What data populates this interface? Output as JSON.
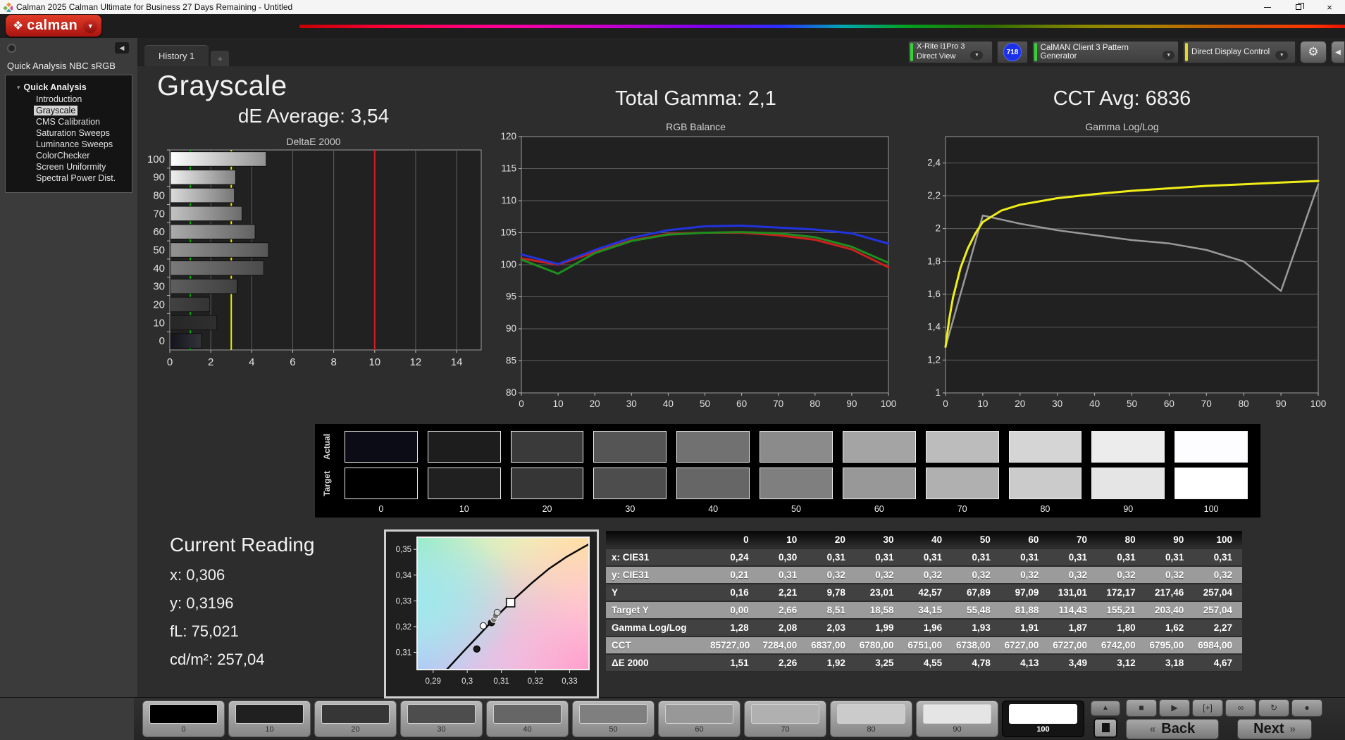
{
  "window": {
    "title": "Calman 2025 Calman Ultimate for Business 27 Days Remaining  - Untitled",
    "minimize_icon": "minimize",
    "restore_icon": "restore",
    "close_icon": "×"
  },
  "header": {
    "logo_text": "calman",
    "logo_diamond": "❖",
    "logo_dropdown_arrow": "▼"
  },
  "toolbar": {
    "tab_label": "History 1",
    "tab_add_label": "+",
    "meter": {
      "line1": "X-Rite i1Pro 3",
      "line2": "Direct View",
      "accent": "#35d435",
      "chevron": "▼"
    },
    "meter_badge": "718",
    "pattern_generator": {
      "label": "CalMAN Client 3 Pattern Generator",
      "accent": "#35d435",
      "chevron": "▼"
    },
    "display_control": {
      "label": "Direct Display Control",
      "accent": "#e6d81f",
      "chevron": "▼"
    },
    "gear_glyph": "⚙",
    "edge_collapse_glyph": "◀"
  },
  "sidebar": {
    "collapse_glyph": "◀",
    "workflow_title": "Quick Analysis NBC sRGB",
    "tree_root": "Quick Analysis",
    "tree_expander": "▾",
    "items": [
      {
        "label": "Introduction",
        "selected": false
      },
      {
        "label": "Grayscale",
        "selected": true
      },
      {
        "label": "CMS Calibration",
        "selected": false
      },
      {
        "label": "Saturation Sweeps",
        "selected": false
      },
      {
        "label": "Luminance Sweeps",
        "selected": false
      },
      {
        "label": "ColorChecker",
        "selected": false
      },
      {
        "label": "Screen Uniformity",
        "selected": false
      },
      {
        "label": "Spectral Power Dist.",
        "selected": false
      }
    ]
  },
  "grayscale_section": {
    "title": "Grayscale",
    "subtitle": "dE Average: 3,54"
  },
  "gamma_section": {
    "title": "Total Gamma: 2,1"
  },
  "cct_section": {
    "title": "CCT Avg: 6836"
  },
  "current_reading": {
    "title": "Current Reading",
    "x": "x: 0,306",
    "y": "y: 0,3196",
    "fl": "fL: 75,021",
    "cdm2": "cd/m²: 257,04"
  },
  "chart_data": [
    {
      "id": "deltae",
      "type": "bar",
      "orientation": "horizontal",
      "title": "DeltaE 2000",
      "categories": [
        0,
        10,
        20,
        30,
        40,
        50,
        60,
        70,
        80,
        90,
        100
      ],
      "values": [
        1.51,
        2.26,
        1.92,
        3.25,
        4.55,
        4.78,
        4.13,
        3.49,
        3.12,
        3.18,
        4.67
      ],
      "xlim": [
        0,
        15.2
      ],
      "xticks": [
        0,
        2,
        4,
        6,
        8,
        10,
        12,
        14
      ],
      "xtick_labels": [
        "0",
        "2",
        "4",
        "6",
        "8",
        "10",
        "12",
        "14"
      ],
      "reference_lines": [
        {
          "value": 1,
          "color": "#00b400",
          "name": "good-target"
        },
        {
          "value": 3,
          "color": "#e8e800",
          "name": "warning-target"
        },
        {
          "value": 10,
          "color": "#d62020",
          "name": "fail-target"
        }
      ],
      "bar_gradients": [
        [
          "#14141c",
          "#33333a"
        ],
        [
          "#272727",
          "#2f2f2f"
        ],
        [
          "#424242",
          "#343434"
        ],
        [
          "#5e5e5e",
          "#404040"
        ],
        [
          "#7a7a7a",
          "#4b4b4b"
        ],
        [
          "#939393",
          "#565656"
        ],
        [
          "#ababab",
          "#616161"
        ],
        [
          "#c3c3c3",
          "#6b6b6b"
        ],
        [
          "#dbdbdb",
          "#767676"
        ],
        [
          "#f0f0f0",
          "#818181"
        ],
        [
          "#ffffff",
          "#929292"
        ]
      ]
    },
    {
      "id": "rgb_balance",
      "type": "line",
      "title": "RGB Balance",
      "x": [
        0,
        10,
        20,
        30,
        40,
        50,
        60,
        70,
        80,
        90,
        100
      ],
      "xticks": [
        0,
        10,
        20,
        30,
        40,
        50,
        60,
        70,
        80,
        90,
        100
      ],
      "xtick_labels": [
        "0",
        "10",
        "20",
        "30",
        "40",
        "50",
        "60",
        "70",
        "80",
        "90",
        "100"
      ],
      "ylim": [
        80,
        120
      ],
      "ytick_values": [
        80,
        85,
        90,
        95,
        100,
        105,
        110,
        115,
        120
      ],
      "ytick_labels": [
        "80",
        "85",
        "90",
        "95",
        "100",
        "105",
        "110",
        "115",
        "120"
      ],
      "series": [
        {
          "name": "Red",
          "color": "#cc1f1f",
          "width": 3,
          "values": [
            101.0,
            100.0,
            102.0,
            103.8,
            104.8,
            105.0,
            105.0,
            104.6,
            103.9,
            102.4,
            99.6
          ]
        },
        {
          "name": "Green",
          "color": "#1e8e1e",
          "width": 3,
          "values": [
            100.8,
            98.6,
            101.8,
            103.7,
            104.7,
            105.0,
            105.1,
            104.9,
            104.3,
            102.8,
            100.3
          ]
        },
        {
          "name": "Blue",
          "color": "#2233dd",
          "width": 3,
          "values": [
            101.6,
            100.1,
            102.3,
            104.2,
            105.4,
            106.0,
            106.1,
            105.8,
            105.5,
            104.9,
            103.3
          ]
        }
      ]
    },
    {
      "id": "gamma_loglog",
      "type": "line",
      "title": "Gamma Log/Log",
      "x": [
        0,
        10,
        20,
        30,
        40,
        50,
        60,
        70,
        80,
        90,
        100
      ],
      "xticks": [
        0,
        10,
        20,
        30,
        40,
        50,
        60,
        70,
        80,
        90,
        100
      ],
      "xtick_labels": [
        "0",
        "10",
        "20",
        "30",
        "40",
        "50",
        "60",
        "70",
        "80",
        "90",
        "100"
      ],
      "ylim": [
        1,
        2.56
      ],
      "ytick_values": [
        1,
        1.2,
        1.4,
        1.6,
        1.8,
        2,
        2.2,
        2.4
      ],
      "ytick_labels": [
        "1",
        "1,2",
        "1,4",
        "1,6",
        "1,8",
        "2",
        "2,2",
        "2,4"
      ],
      "series": [
        {
          "name": "Measured",
          "color": "#9a9a9a",
          "width": 2.5,
          "values": [
            1.28,
            2.08,
            2.03,
            1.99,
            1.96,
            1.93,
            1.91,
            1.87,
            1.8,
            1.62,
            2.27
          ]
        },
        {
          "name": "Target",
          "color": "#f0ee18",
          "width": 3,
          "x": [
            0,
            1,
            2,
            4,
            6,
            8,
            10,
            15,
            20,
            30,
            40,
            50,
            60,
            70,
            80,
            90,
            100
          ],
          "values": [
            1.28,
            1.45,
            1.58,
            1.76,
            1.88,
            1.97,
            2.04,
            2.11,
            2.145,
            2.185,
            2.21,
            2.23,
            2.245,
            2.26,
            2.27,
            2.28,
            2.29
          ]
        }
      ]
    },
    {
      "id": "cie_scatter",
      "type": "scatter",
      "xlim": [
        0.2853,
        0.3357
      ],
      "ylim": [
        0.3033,
        0.3547
      ],
      "xticks": [
        0.29,
        0.3,
        0.31,
        0.32,
        0.33
      ],
      "xtick_labels": [
        "0,29",
        "0,3",
        "0,31",
        "0,32",
        "0,33"
      ],
      "yticks": [
        0.31,
        0.32,
        0.33,
        0.34,
        0.35
      ],
      "ytick_labels": [
        "0,31",
        "0,32",
        "0,33",
        "0,34",
        "0,35"
      ],
      "locus": [
        [
          0.294,
          0.3033
        ],
        [
          0.299,
          0.3105
        ],
        [
          0.304,
          0.3175
        ],
        [
          0.309,
          0.3245
        ],
        [
          0.314,
          0.331
        ],
        [
          0.319,
          0.337
        ],
        [
          0.324,
          0.3425
        ],
        [
          0.329,
          0.347
        ],
        [
          0.334,
          0.3508
        ],
        [
          0.3357,
          0.352
        ]
      ],
      "points": [
        {
          "x": 0.3028,
          "y": 0.3113,
          "style": "dot-dark"
        },
        {
          "x": 0.3047,
          "y": 0.3203,
          "style": "dot-open"
        },
        {
          "x": 0.3071,
          "y": 0.3215,
          "style": "dot-dark"
        },
        {
          "x": 0.3078,
          "y": 0.3228,
          "style": "dot-mid"
        },
        {
          "x": 0.3083,
          "y": 0.3242,
          "style": "dot-mid"
        },
        {
          "x": 0.3088,
          "y": 0.3255,
          "style": "dot-light"
        },
        {
          "x": 0.3127,
          "y": 0.3293,
          "style": "square-target"
        }
      ],
      "corner_colors": {
        "top_left": "#8ef0c0",
        "top_right": "#ffe2a0",
        "bottom_left": "#aac8f8",
        "bottom_right": "#ff9ecb",
        "mid_left": "#9fe8ea"
      }
    }
  ],
  "levels_strip": {
    "row_labels": [
      "Actual",
      "Target"
    ],
    "levels": [
      "0",
      "10",
      "20",
      "30",
      "40",
      "50",
      "60",
      "70",
      "80",
      "90",
      "100"
    ],
    "actual_colors": [
      "#0c0c16",
      "#1d1d1d",
      "#3a3a3a",
      "#555555",
      "#717171",
      "#8b8b8b",
      "#a4a4a4",
      "#bcbcbc",
      "#d5d5d5",
      "#ececec",
      "#fdfdff"
    ],
    "target_colors": [
      "#000000",
      "#202020",
      "#363636",
      "#4d4d4d",
      "#666666",
      "#7f7f7f",
      "#989898",
      "#b0b0b0",
      "#cbcbcb",
      "#e5e5e5",
      "#ffffff"
    ]
  },
  "table": {
    "columns": [
      "",
      "0",
      "10",
      "20",
      "30",
      "40",
      "50",
      "60",
      "70",
      "80",
      "90",
      "100"
    ],
    "rows": [
      {
        "label": "x: CIE31",
        "tone": "dark",
        "values": [
          "0,24",
          "0,30",
          "0,31",
          "0,31",
          "0,31",
          "0,31",
          "0,31",
          "0,31",
          "0,31",
          "0,31",
          "0,31"
        ]
      },
      {
        "label": "y: CIE31",
        "tone": "light",
        "values": [
          "0,21",
          "0,31",
          "0,32",
          "0,32",
          "0,32",
          "0,32",
          "0,32",
          "0,32",
          "0,32",
          "0,32",
          "0,32"
        ]
      },
      {
        "label": "Y",
        "tone": "dark",
        "values": [
          "0,16",
          "2,21",
          "9,78",
          "23,01",
          "42,57",
          "67,89",
          "97,09",
          "131,01",
          "172,17",
          "217,46",
          "257,04"
        ]
      },
      {
        "label": "Target Y",
        "tone": "light",
        "values": [
          "0,00",
          "2,66",
          "8,51",
          "18,58",
          "34,15",
          "55,48",
          "81,88",
          "114,43",
          "155,21",
          "203,40",
          "257,04"
        ]
      },
      {
        "label": "Gamma Log/Log",
        "tone": "dark",
        "values": [
          "1,28",
          "2,08",
          "2,03",
          "1,99",
          "1,96",
          "1,93",
          "1,91",
          "1,87",
          "1,80",
          "1,62",
          "2,27"
        ]
      },
      {
        "label": "CCT",
        "tone": "light",
        "values": [
          "85727,00",
          "7284,00",
          "6837,00",
          "6780,00",
          "6751,00",
          "6738,00",
          "6727,00",
          "6727,00",
          "6742,00",
          "6795,00",
          "6984,00"
        ]
      },
      {
        "label": "ΔE 2000",
        "tone": "dark",
        "values": [
          "1,51",
          "2,26",
          "1,92",
          "3,25",
          "4,55",
          "4,78",
          "4,13",
          "3,49",
          "3,12",
          "3,18",
          "4,67"
        ]
      }
    ]
  },
  "bottom_bar": {
    "patterns": [
      {
        "label": "0",
        "color": "#000000"
      },
      {
        "label": "10",
        "color": "#202020"
      },
      {
        "label": "20",
        "color": "#363636"
      },
      {
        "label": "30",
        "color": "#4d4d4d"
      },
      {
        "label": "40",
        "color": "#666666"
      },
      {
        "label": "50",
        "color": "#7f7f7f"
      },
      {
        "label": "60",
        "color": "#989898"
      },
      {
        "label": "70",
        "color": "#b0b0b0"
      },
      {
        "label": "80",
        "color": "#cbcbcb"
      },
      {
        "label": "90",
        "color": "#e5e5e5"
      },
      {
        "label": "100",
        "color": "#ffffff"
      }
    ],
    "selected_pattern": "100",
    "level_up_glyph": "▲",
    "transport": [
      {
        "name": "stop-icon",
        "glyph": "■"
      },
      {
        "name": "play-icon",
        "glyph": "▶"
      },
      {
        "name": "pattern-size-icon",
        "glyph": "[+]"
      },
      {
        "name": "continuous-icon",
        "glyph": "∞"
      },
      {
        "name": "refresh-icon",
        "glyph": "↻"
      },
      {
        "name": "record-icon",
        "glyph": "●"
      }
    ],
    "back_label": "Back",
    "back_glyph": "«",
    "next_label": "Next",
    "next_glyph": "»"
  }
}
